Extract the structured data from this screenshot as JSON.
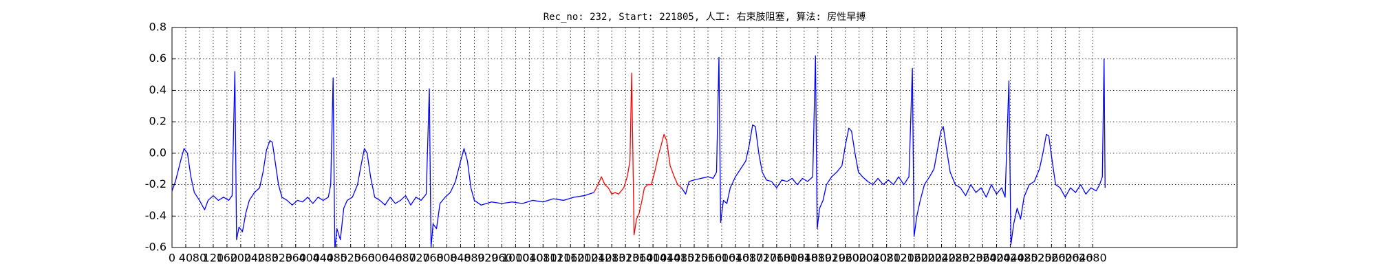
{
  "chart_data": {
    "type": "line",
    "title": "Rec_no: 232, Start: 221805, 人工: 右束肢阻塞, 算法: 房性早搏",
    "x": [
      0,
      10,
      25,
      35,
      45,
      55,
      65,
      80,
      95,
      105,
      120,
      135,
      150,
      165,
      175,
      183,
      188,
      195,
      205,
      215,
      225,
      240,
      255,
      265,
      275,
      285,
      292,
      300,
      310,
      320,
      335,
      350,
      365,
      380,
      395,
      410,
      425,
      440,
      455,
      462,
      469,
      474,
      480,
      490,
      500,
      510,
      525,
      540,
      550,
      560,
      568,
      578,
      590,
      605,
      620,
      635,
      650,
      665,
      680,
      695,
      710,
      725,
      740,
      749,
      754,
      760,
      770,
      780,
      795,
      810,
      825,
      840,
      850,
      860,
      870,
      880,
      900,
      930,
      960,
      990,
      1020,
      1050,
      1080,
      1110,
      1140,
      1170,
      1200,
      1228,
      1240,
      1250,
      1260,
      1270,
      1280,
      1290,
      1300,
      1315,
      1325,
      1333,
      1338,
      1345,
      1352,
      1360,
      1368,
      1375,
      1385,
      1395,
      1405,
      1415,
      1425,
      1432,
      1440,
      1450,
      1462,
      1472,
      1483,
      1495,
      1505,
      1520,
      1540,
      1560,
      1575,
      1585,
      1592,
      1597,
      1605,
      1615,
      1625,
      1640,
      1655,
      1670,
      1680,
      1690,
      1698,
      1708,
      1718,
      1730,
      1745,
      1760,
      1775,
      1790,
      1805,
      1820,
      1835,
      1850,
      1865,
      1873,
      1878,
      1885,
      1895,
      1905,
      1920,
      1935,
      1950,
      1960,
      1970,
      1978,
      1988,
      1998,
      2010,
      2025,
      2040,
      2055,
      2070,
      2085,
      2100,
      2115,
      2130,
      2145,
      2155,
      2160,
      2168,
      2178,
      2190,
      2205,
      2218,
      2228,
      2238,
      2245,
      2255,
      2265,
      2280,
      2295,
      2310,
      2325,
      2340,
      2355,
      2370,
      2385,
      2400,
      2415,
      2425,
      2436,
      2442,
      2450,
      2460,
      2470,
      2480,
      2495,
      2510,
      2525,
      2535,
      2545,
      2552,
      2562,
      2572,
      2585,
      2600,
      2615,
      2630,
      2645,
      2660,
      2675,
      2690,
      2700,
      2708,
      2713,
      2716
    ],
    "series": [
      {
        "color": "#0000ff",
        "values": [
          -0.24,
          -0.18,
          -0.05,
          0.03,
          0.0,
          -0.15,
          -0.25,
          -0.3,
          -0.36,
          -0.3,
          -0.27,
          -0.3,
          -0.28,
          -0.3,
          -0.27,
          0.52,
          -0.55,
          -0.47,
          -0.5,
          -0.38,
          -0.3,
          -0.25,
          -0.22,
          -0.12,
          0.02,
          0.08,
          0.07,
          -0.05,
          -0.2,
          -0.28,
          -0.3,
          -0.33,
          -0.3,
          -0.31,
          -0.28,
          -0.32,
          -0.28,
          -0.3,
          -0.28,
          -0.2,
          0.48,
          -0.62,
          -0.48,
          -0.55,
          -0.35,
          -0.3,
          -0.28,
          -0.2,
          -0.08,
          0.03,
          0.0,
          -0.15,
          -0.28,
          -0.3,
          -0.33,
          -0.28,
          -0.32,
          -0.3,
          -0.27,
          -0.33,
          -0.28,
          -0.3,
          -0.26,
          0.41,
          -0.6,
          -0.45,
          -0.48,
          -0.32,
          -0.28,
          -0.25,
          -0.18,
          -0.05,
          0.03,
          -0.05,
          -0.22,
          -0.3,
          -0.33,
          -0.31,
          -0.32,
          -0.31,
          -0.32,
          -0.3,
          -0.31,
          -0.29,
          -0.3,
          -0.28,
          -0.27,
          -0.25,
          null,
          null,
          null,
          null,
          null,
          null,
          null,
          null,
          null,
          null,
          null,
          null,
          null,
          null,
          null,
          null,
          null,
          null,
          null,
          null,
          null,
          null,
          null,
          null,
          null,
          null,
          -0.22,
          -0.26,
          -0.18,
          -0.17,
          -0.16,
          -0.15,
          -0.16,
          -0.12,
          0.61,
          -0.44,
          -0.3,
          -0.32,
          -0.22,
          -0.15,
          -0.1,
          -0.05,
          0.05,
          0.18,
          0.17,
          0.0,
          -0.12,
          -0.17,
          -0.18,
          -0.22,
          -0.17,
          -0.18,
          -0.16,
          -0.2,
          -0.16,
          -0.18,
          -0.15,
          0.62,
          -0.48,
          -0.35,
          -0.3,
          -0.2,
          -0.15,
          -0.12,
          -0.08,
          0.05,
          0.16,
          0.14,
          0.0,
          -0.12,
          -0.15,
          -0.18,
          -0.2,
          -0.16,
          -0.2,
          -0.17,
          -0.2,
          -0.15,
          -0.2,
          -0.15,
          0.54,
          -0.53,
          -0.4,
          -0.3,
          -0.2,
          -0.15,
          -0.1,
          0.02,
          0.14,
          0.17,
          0.02,
          -0.12,
          -0.2,
          -0.22,
          -0.27,
          -0.2,
          -0.25,
          -0.22,
          -0.28,
          -0.2,
          -0.26,
          -0.22,
          -0.28,
          0.46,
          -0.58,
          -0.45,
          -0.35,
          -0.42,
          -0.28,
          -0.2,
          -0.18,
          -0.1,
          0.0,
          0.12,
          0.11,
          -0.05,
          -0.2,
          -0.22,
          -0.28,
          -0.22,
          -0.25,
          -0.2,
          -0.26,
          -0.22,
          -0.24,
          -0.2,
          -0.15,
          0.6,
          -0.22
        ]
      },
      {
        "color": "#ff0000",
        "values": [
          null,
          null,
          null,
          null,
          null,
          null,
          null,
          null,
          null,
          null,
          null,
          null,
          null,
          null,
          null,
          null,
          null,
          null,
          null,
          null,
          null,
          null,
          null,
          null,
          null,
          null,
          null,
          null,
          null,
          null,
          null,
          null,
          null,
          null,
          null,
          null,
          null,
          null,
          null,
          null,
          null,
          null,
          null,
          null,
          null,
          null,
          null,
          null,
          null,
          null,
          null,
          null,
          null,
          null,
          null,
          null,
          null,
          null,
          null,
          null,
          null,
          null,
          null,
          null,
          null,
          null,
          null,
          null,
          null,
          null,
          null,
          null,
          null,
          null,
          null,
          null,
          null,
          null,
          null,
          null,
          null,
          null,
          null,
          null,
          null,
          null,
          null,
          -0.25,
          -0.2,
          -0.15,
          -0.2,
          -0.22,
          -0.26,
          -0.25,
          -0.26,
          -0.22,
          -0.15,
          -0.05,
          0.51,
          -0.52,
          -0.42,
          -0.38,
          -0.3,
          -0.22,
          -0.2,
          -0.2,
          -0.12,
          -0.02,
          0.06,
          0.12,
          0.08,
          -0.08,
          -0.15,
          -0.2,
          -0.22,
          null,
          null,
          null,
          null,
          null,
          null,
          null,
          null,
          null,
          null,
          null,
          null,
          null,
          null,
          null,
          null,
          null,
          null,
          null,
          null,
          null,
          null,
          null,
          null,
          null,
          null,
          null,
          null,
          null,
          null,
          null,
          null,
          null,
          null,
          null,
          null,
          null,
          null,
          null,
          null,
          null,
          null,
          null,
          null,
          null,
          null,
          null,
          null,
          null,
          null,
          null,
          null,
          null,
          null,
          null,
          null,
          null,
          null,
          null,
          null,
          null,
          null,
          null,
          null,
          null,
          null,
          null,
          null,
          null,
          null,
          null,
          null,
          null,
          null,
          null,
          null,
          null,
          null,
          null,
          null,
          null,
          null,
          null,
          null,
          null,
          null,
          null,
          null,
          null,
          null,
          null,
          null,
          null,
          null,
          null,
          null,
          null,
          null,
          null,
          null,
          null,
          null
        ]
      }
    ],
    "xlim": [
      0,
      3100
    ],
    "xticks": [
      0,
      40,
      80,
      120,
      160,
      200,
      240,
      280,
      320,
      360,
      400,
      440,
      480,
      520,
      560,
      600,
      640,
      680,
      720,
      760,
      800,
      840,
      880,
      920,
      960,
      1000,
      1040,
      1080,
      1120,
      1160,
      1200,
      1240,
      1280,
      1320,
      1360,
      1400,
      1440,
      1480,
      1520,
      1560,
      1600,
      1640,
      1680,
      1720,
      1760,
      1800,
      1840,
      1880,
      1920,
      1960,
      2000,
      2040,
      2080,
      2120,
      2160,
      2200,
      2240,
      2280,
      2320,
      2360,
      2400,
      2440,
      2480,
      2520,
      2560,
      2600,
      2640,
      2680
    ],
    "ylim": [
      -0.6,
      0.8
    ],
    "yticks": [
      -0.6,
      -0.4,
      -0.2,
      {
        "value": 0,
        "label": "0.0"
      },
      0.2,
      0.4,
      0.6,
      0.8
    ],
    "grid": true
  }
}
